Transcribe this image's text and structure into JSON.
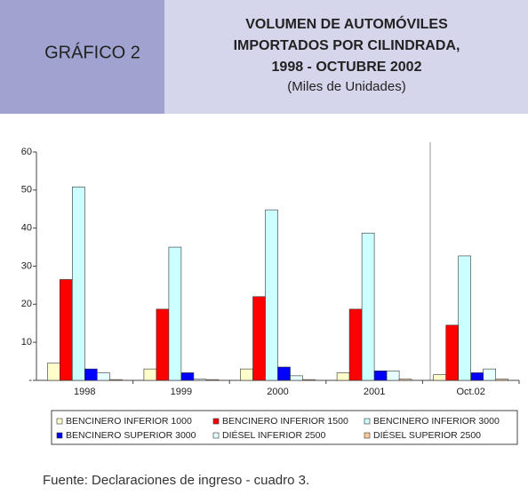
{
  "chart_data": {
    "type": "bar",
    "label": "GRÁFICO 2",
    "title_lines": [
      "VOLUMEN DE AUTOMÓVILES",
      "IMPORTADOS POR CILINDRADA,",
      "1998 - OCTUBRE 2002"
    ],
    "subtitle": "(Miles de Unidades)",
    "source": "Fuente:  Declaraciones de ingreso - cuadro 3.",
    "categories": [
      "1998",
      "1999",
      "2000",
      "2001",
      "Oct.02"
    ],
    "series": [
      {
        "name": "BENCINERO INFERIOR 1000",
        "color": "#ffffcc",
        "values": [
          4.5,
          3,
          3,
          2,
          1.5
        ]
      },
      {
        "name": "BENCINERO INFERIOR 1500",
        "color": "#ff0000",
        "values": [
          26.5,
          18.7,
          22,
          18.7,
          14.5
        ]
      },
      {
        "name": "BENCINERO INFERIOR 3000",
        "color": "#ccffff",
        "values": [
          50.8,
          35,
          44.8,
          38.7,
          32.7
        ]
      },
      {
        "name": "BENCINERO SUPERIOR 3000",
        "color": "#0000ff",
        "values": [
          3,
          2,
          3.5,
          2.5,
          2
        ]
      },
      {
        "name": "DIÉSEL INFERIOR 2500",
        "color": "#e6ffff",
        "values": [
          2,
          0.3,
          1.2,
          2.5,
          3
        ]
      },
      {
        "name": "DIÉSEL SUPERIOR 2500",
        "color": "#ffcc99",
        "values": [
          0.2,
          0.2,
          0.2,
          0.3,
          0.3
        ]
      }
    ],
    "ylim": [
      0,
      60
    ],
    "yticks": [
      {
        "value": 0,
        "label": "-"
      },
      10,
      20,
      30,
      40,
      50,
      60
    ],
    "grid": false
  }
}
